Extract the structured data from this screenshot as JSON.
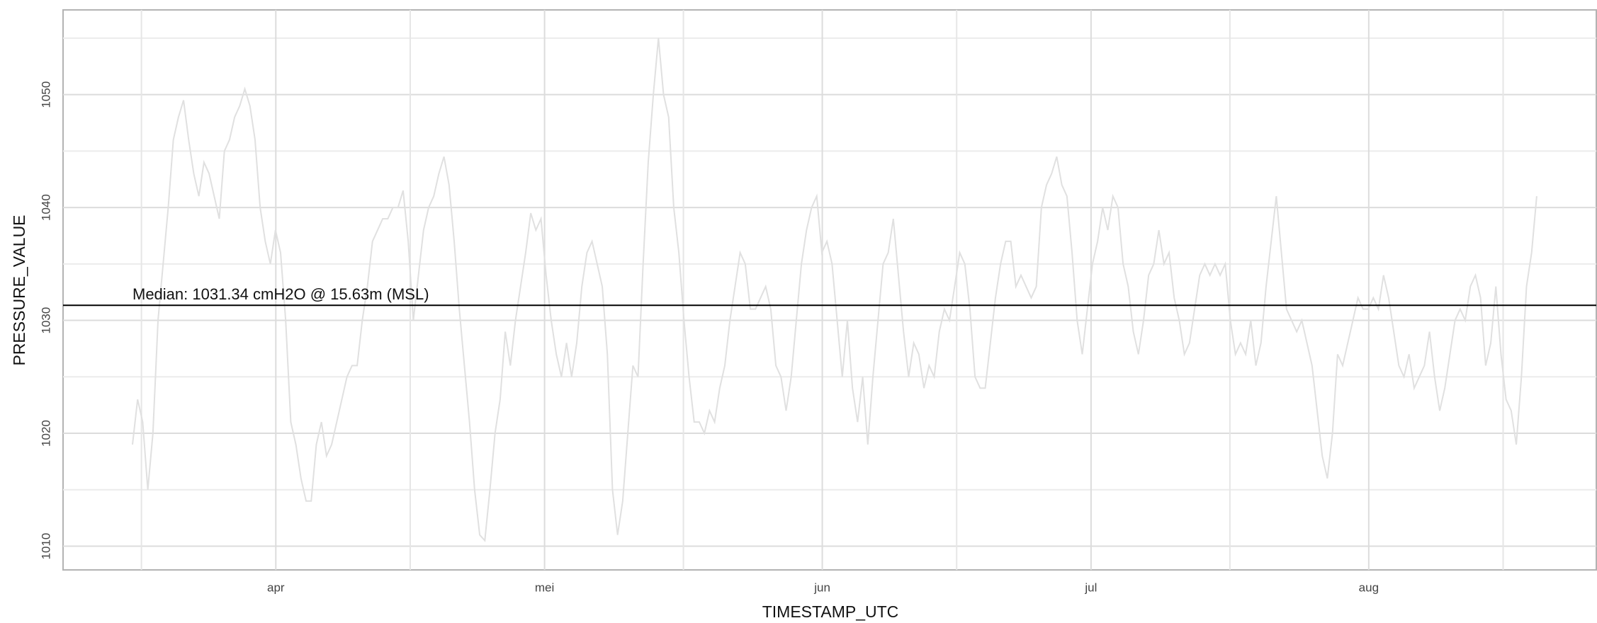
{
  "chart_data": {
    "type": "line",
    "x_label": "TIMESTAMP_UTC",
    "y_label": "PRESSURE_VALUE",
    "color": "#e0e0e0",
    "grid": true,
    "xlim": [
      7.25,
      178.4
    ],
    "ylim": [
      1007.9,
      1057.5
    ],
    "xticks": [
      {
        "value": 31,
        "label": "apr"
      },
      {
        "value": 61,
        "label": "mei"
      },
      {
        "value": 92,
        "label": "jun"
      },
      {
        "value": 122,
        "label": "jul"
      },
      {
        "value": 153,
        "label": "aug"
      }
    ],
    "yticks": [
      1010,
      1020,
      1030,
      1040,
      1050
    ],
    "hline": 1031.34,
    "annotation": "Median: 1031.34 cmH2O @ 15.63m (MSL)",
    "x": [
      15,
      15.57,
      16.14,
      16.71,
      17.28,
      17.85,
      18.42,
      18.99,
      19.56,
      20.13,
      20.7,
      21.27,
      21.84,
      22.41,
      22.98,
      23.55,
      24.12,
      24.69,
      25.26,
      25.83,
      26.4,
      26.97,
      27.54,
      28.11,
      28.68,
      29.25,
      29.82,
      30.39,
      30.96,
      31.53,
      32.1,
      32.67,
      33.24,
      33.81,
      34.38,
      34.95,
      35.52,
      36.09,
      36.66,
      37.23,
      37.8,
      38.37,
      38.94,
      39.51,
      40.08,
      40.65,
      41.22,
      41.79,
      42.36,
      42.93,
      43.5,
      44.07,
      44.64,
      45.21,
      45.78,
      46.35,
      46.92,
      47.49,
      48.06,
      48.63,
      49.2,
      49.77,
      50.34,
      50.91,
      51.48,
      52.05,
      52.62,
      53.19,
      53.76,
      54.33,
      54.9,
      55.47,
      56.04,
      56.61,
      57.18,
      57.75,
      58.32,
      58.89,
      59.46,
      60.03,
      60.6,
      61.17,
      61.74,
      62.31,
      62.88,
      63.45,
      64.02,
      64.59,
      65.16,
      65.73,
      66.3,
      66.87,
      67.44,
      68.01,
      68.58,
      69.15,
      69.72,
      70.29,
      70.86,
      71.43,
      72,
      72.57,
      73.14,
      73.71,
      74.28,
      74.85,
      75.42,
      75.99,
      76.56,
      77.13,
      77.7,
      78.27,
      78.84,
      79.41,
      79.98,
      80.55,
      81.12,
      81.69,
      82.26,
      82.83,
      83.4,
      83.97,
      84.54,
      85.11,
      85.68,
      86.25,
      86.82,
      87.39,
      87.96,
      88.53,
      89.1,
      89.67,
      90.24,
      90.81,
      91.38,
      91.95,
      92.52,
      93.09,
      93.66,
      94.23,
      94.8,
      95.37,
      95.94,
      96.51,
      97.08,
      97.65,
      98.22,
      98.79,
      99.36,
      99.93,
      100.5,
      101.07,
      101.64,
      102.21,
      102.78,
      103.35,
      103.92,
      104.49,
      105.06,
      105.63,
      106.2,
      106.77,
      107.34,
      107.91,
      108.48,
      109.05,
      109.62,
      110.19,
      110.76,
      111.33,
      111.9,
      112.47,
      113.04,
      113.61,
      114.18,
      114.75,
      115.32,
      115.89,
      116.46,
      117.03,
      117.6,
      118.17,
      118.74,
      119.31,
      119.88,
      120.45,
      121.02,
      121.59,
      122.16,
      122.73,
      123.3,
      123.87,
      124.44,
      125.01,
      125.58,
      126.15,
      126.72,
      127.29,
      127.86,
      128.43,
      129,
      129.57,
      130.14,
      130.71,
      131.28,
      131.85,
      132.42,
      132.99,
      133.56,
      134.13,
      134.7,
      135.27,
      135.84,
      136.41,
      136.98,
      137.55,
      138.12,
      138.69,
      139.26,
      139.83,
      140.4,
      140.97,
      141.54,
      142.11,
      142.68,
      143.25,
      143.82,
      144.39,
      144.96,
      145.53,
      146.1,
      146.67,
      147.24,
      147.81,
      148.38,
      148.95,
      149.52,
      150.09,
      150.66,
      151.23,
      151.8,
      152.37,
      152.94,
      153.51,
      154.08,
      154.65,
      155.22,
      155.79,
      156.36,
      156.93,
      157.5,
      158.07,
      158.64,
      159.21,
      159.78,
      160.35,
      160.92,
      161.49,
      162.06,
      162.63,
      163.2,
      163.77,
      164.34,
      164.91,
      165.48,
      166.05,
      166.62,
      167.19,
      167.76,
      168.33,
      168.9,
      169.47,
      170.04,
      170.61,
      171.18,
      171.75
    ],
    "values": [
      1019,
      1023,
      1021,
      1015,
      1020,
      1030,
      1035,
      1040,
      1046,
      1048,
      1049.5,
      1046,
      1043,
      1041,
      1044,
      1043,
      1041,
      1039,
      1045,
      1046,
      1048,
      1049,
      1050.5,
      1049,
      1046,
      1040,
      1037,
      1035,
      1038,
      1036,
      1030,
      1021,
      1019,
      1016,
      1014,
      1014,
      1019,
      1021,
      1018,
      1019,
      1021,
      1023,
      1025,
      1026,
      1026,
      1030,
      1033,
      1037,
      1038,
      1039,
      1039,
      1040,
      1040,
      1041.5,
      1037,
      1030,
      1034,
      1038,
      1040,
      1041,
      1043,
      1044.5,
      1042,
      1037,
      1031,
      1026,
      1021,
      1015,
      1011,
      1010.5,
      1015,
      1020,
      1023,
      1029,
      1026,
      1030,
      1033,
      1036,
      1039.5,
      1038,
      1039,
      1034,
      1030,
      1027,
      1025,
      1028,
      1025,
      1028,
      1033,
      1036,
      1037,
      1035,
      1033,
      1027,
      1015,
      1011,
      1014,
      1020,
      1026,
      1025,
      1035,
      1044,
      1050,
      1055,
      1050,
      1048,
      1040,
      1036,
      1030,
      1025,
      1021,
      1021,
      1020,
      1022,
      1021,
      1024,
      1026,
      1030,
      1033,
      1036,
      1035,
      1031,
      1031,
      1032,
      1033,
      1031,
      1026,
      1025,
      1022,
      1025,
      1030,
      1035,
      1038,
      1040,
      1041,
      1036,
      1037,
      1035,
      1030,
      1025,
      1030,
      1024,
      1021,
      1025,
      1019,
      1025,
      1030,
      1035,
      1036,
      1039,
      1034,
      1029,
      1025,
      1028,
      1027,
      1024,
      1026,
      1025,
      1029,
      1031,
      1030,
      1033,
      1036,
      1035,
      1031,
      1025,
      1024,
      1024,
      1028,
      1032,
      1035,
      1037,
      1037,
      1033,
      1034,
      1033,
      1032,
      1033,
      1040,
      1042,
      1043,
      1044.5,
      1042,
      1041,
      1036,
      1030,
      1027,
      1031,
      1035,
      1037,
      1040,
      1038,
      1041,
      1040,
      1035,
      1033,
      1029,
      1027,
      1030,
      1034,
      1035,
      1038,
      1035,
      1036,
      1032,
      1030,
      1027,
      1028,
      1031,
      1034,
      1035,
      1034,
      1035,
      1034,
      1035,
      1030,
      1027,
      1028,
      1027,
      1030,
      1026,
      1028,
      1033,
      1037,
      1041,
      1036,
      1031,
      1030,
      1029,
      1030,
      1028,
      1026,
      1022,
      1018,
      1016,
      1020,
      1027,
      1026,
      1028,
      1030,
      1032,
      1031,
      1031,
      1032,
      1031,
      1034,
      1032,
      1029,
      1026,
      1025,
      1027,
      1024,
      1025,
      1026,
      1029,
      1025,
      1022,
      1024,
      1027,
      1030,
      1031,
      1030,
      1033,
      1034,
      1032,
      1026,
      1028,
      1033,
      1027,
      1023,
      1022,
      1019,
      1025,
      1033,
      1036,
      1041
    ]
  }
}
